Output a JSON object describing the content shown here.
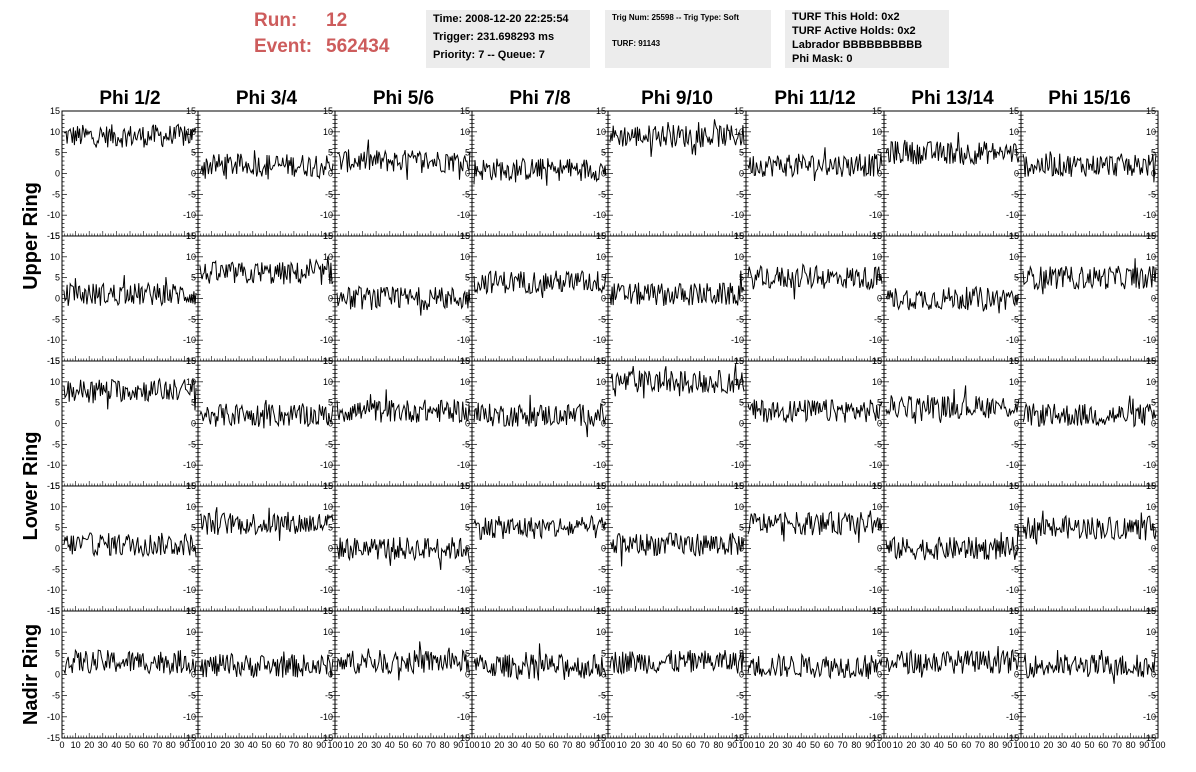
{
  "header": {
    "run_label": "Run:",
    "run_value": "12",
    "event_label": "Event:",
    "event_value": "562434",
    "time": "Time: 2008-12-20 22:25:54",
    "trigger": "Trigger: 231.698293 ms",
    "priority": "Priority: 7 -- Queue: 7",
    "trig_num": "Trig Num: 25598 -- Trig Type: Soft",
    "turf": "TURF: 91143",
    "turf_this_hold": "TURF This Hold: 0x2",
    "turf_active_holds": "TURF Active Holds: 0x2",
    "labrador": "Labrador BBBBBBBBBB",
    "phi_mask": "Phi Mask: 0"
  },
  "colors": {
    "run_text": "#cd5c5c",
    "info_bg": "#ececec",
    "trace": "#000000"
  },
  "chart_data": {
    "type": "line",
    "columns": [
      "Phi 1/2",
      "Phi 3/4",
      "Phi 5/6",
      "Phi 7/8",
      "Phi 9/10",
      "Phi 11/12",
      "Phi 13/14",
      "Phi 15/16"
    ],
    "rows": [
      "Upper Ring",
      "Upper Ring",
      "Lower Ring",
      "Lower Ring",
      "Nadir Ring"
    ],
    "row_labels": [
      "Upper Ring",
      "Lower Ring",
      "Nadir Ring"
    ],
    "ylim": [
      -15,
      15
    ],
    "xlim": [
      0,
      100
    ],
    "y_ticks": [
      "15",
      "10",
      "5",
      "0",
      "-5",
      "-10",
      "-15"
    ],
    "x_ticks": [
      "0",
      "10",
      "20",
      "30",
      "40",
      "50",
      "60",
      "70",
      "80",
      "90",
      "100"
    ],
    "samples": 128,
    "baselines": [
      [
        9,
        2,
        3,
        1,
        9,
        2,
        5,
        2
      ],
      [
        1,
        6,
        0,
        4,
        1,
        5,
        0,
        5
      ],
      [
        8,
        2,
        3,
        2,
        10,
        3,
        4,
        2
      ],
      [
        1,
        6,
        0,
        5,
        1,
        6,
        0,
        5
      ],
      [
        3,
        2,
        3,
        2,
        3,
        2,
        3,
        2
      ]
    ],
    "spread": 2.8,
    "grid": false,
    "legend": "none"
  }
}
